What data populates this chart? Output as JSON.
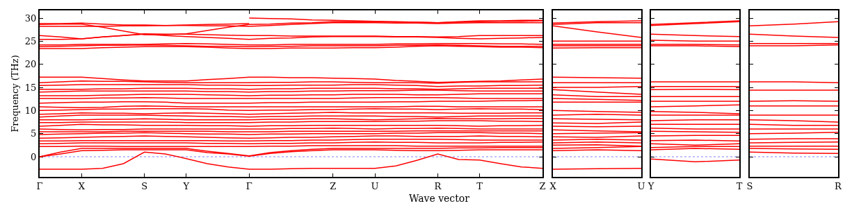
{
  "chart_data": [
    {
      "type": "line",
      "xlabel": "Wave vector",
      "ylabel": "Frequency (THz)",
      "categories": [
        "Γ",
        null,
        "X",
        null,
        null,
        "S",
        null,
        "Y",
        null,
        null,
        "Γ",
        null,
        null,
        null,
        "Z",
        null,
        "U",
        null,
        null,
        "R",
        null,
        "T",
        null,
        null,
        "Z"
      ],
      "ylim": [
        -4.35,
        31.65
      ],
      "yticks": [
        0,
        5,
        10,
        15,
        20,
        25,
        30
      ],
      "grid": false,
      "marker": "none",
      "line_style": "solid",
      "ref_lines": [
        {
          "axis": "y",
          "value": 0,
          "color": "#8080ff",
          "line_style": "dotted"
        }
      ],
      "series": [
        {
          "color": "#ff0000",
          "values": [
            -2.7,
            -2.7,
            -2.7,
            -2.5,
            -1.5,
            1.0,
            0.6,
            -0.4,
            -1.5,
            -2.2,
            -2.7,
            -2.7,
            -2.6,
            -2.5,
            -2.5,
            -2.5,
            -2.5,
            -2.0,
            -0.8,
            0.6,
            -0.6,
            -0.7,
            -1.5,
            -2.2,
            -2.5
          ]
        },
        {
          "color": "#ff0000",
          "values": [
            0,
            0.6,
            1.3,
            1.4,
            1.5,
            1.5,
            1.5,
            1.5,
            0.9,
            0.6,
            0.1,
            0.7,
            1.1,
            1.3,
            1.5,
            1.5,
            1.5,
            1.4,
            1.3,
            1.3,
            1.4,
            1.5,
            1.5,
            1.5,
            1.5
          ]
        },
        {
          "color": "#ff0000",
          "values": [
            0,
            1.0,
            1.8,
            1.8,
            1.8,
            1.8,
            1.8,
            1.8,
            1.2,
            0.7,
            0.2,
            0.9,
            1.3,
            1.6,
            1.8,
            1.8,
            1.8,
            1.8,
            1.8,
            1.8,
            1.9,
            1.9,
            2.0,
            2.0,
            2.0
          ]
        },
        {
          "color": "#ff0000",
          "values": [
            2.2,
            2.2,
            2.3,
            2.3,
            2.2,
            2.2,
            2.2,
            2.2,
            2.2,
            2.2,
            2.2,
            2.3,
            2.3,
            2.4,
            2.4,
            2.4,
            2.4,
            2.4,
            2.3,
            2.3,
            2.3,
            2.3,
            2.3,
            2.3,
            2.3
          ]
        },
        {
          "color": "#ff0000",
          "values": [
            2.8,
            2.9,
            3.0,
            3.0,
            3.0,
            3.0,
            3.0,
            3.0,
            2.9,
            2.9,
            2.8,
            2.9,
            2.9,
            3.0,
            3.0,
            3.1,
            3.2,
            3.1,
            3.1,
            3.0,
            3.0,
            3.0,
            3.1,
            3.1,
            3.2
          ]
        },
        {
          "color": "#ff0000",
          "values": [
            3.4,
            3.4,
            3.5,
            3.5,
            3.5,
            3.5,
            3.5,
            3.5,
            3.5,
            3.4,
            3.4,
            3.5,
            3.5,
            3.6,
            3.6,
            3.7,
            3.8,
            3.8,
            3.8,
            3.8,
            3.7,
            3.6,
            3.6,
            3.6,
            3.6
          ]
        },
        {
          "color": "#ff0000",
          "values": [
            4.0,
            4.1,
            4.2,
            4.3,
            4.4,
            4.5,
            4.4,
            4.3,
            4.2,
            4.1,
            4.0,
            4.1,
            4.2,
            4.2,
            4.3,
            4.4,
            4.5,
            4.5,
            4.4,
            4.4,
            4.4,
            4.5,
            4.4,
            4.4,
            4.3
          ]
        },
        {
          "color": "#ff0000",
          "values": [
            4.8,
            4.9,
            5.0,
            5.1,
            5.1,
            5.2,
            5.1,
            5.0,
            4.9,
            4.9,
            4.8,
            4.9,
            4.9,
            5.0,
            5.0,
            5.0,
            5.0,
            5.1,
            5.1,
            5.2,
            5.2,
            5.2,
            5.1,
            5.1,
            5.0
          ]
        },
        {
          "color": "#ff0000",
          "values": [
            5.4,
            5.4,
            5.4,
            5.4,
            5.5,
            5.5,
            5.5,
            5.5,
            5.5,
            5.4,
            5.4,
            5.4,
            5.5,
            5.5,
            5.5,
            5.5,
            5.5,
            5.5,
            5.6,
            5.6,
            5.6,
            5.6,
            5.6,
            5.6,
            5.6
          ]
        },
        {
          "color": "#ff0000",
          "values": [
            6.0,
            5.9,
            5.8,
            5.9,
            5.9,
            6.0,
            6.0,
            6.0,
            6.0,
            6.0,
            6.0,
            6.0,
            6.1,
            6.1,
            6.2,
            6.1,
            6.0,
            6.1,
            6.1,
            6.2,
            6.1,
            6.0,
            6.0,
            6.0,
            6.0
          ]
        },
        {
          "color": "#ff0000",
          "values": [
            6.6,
            6.8,
            7.0,
            6.9,
            6.9,
            6.8,
            6.8,
            6.8,
            6.7,
            6.7,
            6.6,
            6.7,
            6.7,
            6.8,
            6.8,
            6.8,
            6.8,
            6.8,
            6.8,
            6.8,
            6.7,
            6.6,
            6.7,
            6.7,
            6.8
          ]
        },
        {
          "color": "#ff0000",
          "values": [
            7.4,
            7.4,
            7.5,
            7.5,
            7.5,
            7.5,
            7.5,
            7.4,
            7.4,
            7.4,
            7.4,
            7.5,
            7.5,
            7.6,
            7.6,
            7.6,
            7.6,
            7.7,
            7.7,
            7.8,
            7.8,
            7.8,
            7.7,
            7.7,
            7.6
          ]
        },
        {
          "color": "#ff0000",
          "values": [
            8.0,
            8.0,
            8.0,
            8.1,
            8.1,
            8.2,
            8.1,
            8.0,
            8.0,
            8.0,
            8.0,
            8.1,
            8.1,
            8.2,
            8.2,
            8.1,
            8.0,
            8.1,
            8.2,
            8.3,
            8.2,
            8.2,
            8.2,
            8.3,
            8.3
          ]
        },
        {
          "color": "#ff0000",
          "values": [
            8.6,
            8.8,
            9.0,
            9.0,
            9.0,
            9.0,
            8.9,
            8.8,
            8.7,
            8.7,
            8.6,
            8.7,
            8.7,
            8.8,
            8.8,
            8.8,
            8.8,
            8.7,
            8.7,
            8.6,
            8.7,
            8.8,
            8.8,
            8.8,
            8.8
          ]
        },
        {
          "color": "#ff0000",
          "values": [
            9.2,
            9.3,
            9.5,
            9.4,
            9.4,
            9.3,
            9.4,
            9.5,
            9.4,
            9.3,
            9.2,
            9.3,
            9.4,
            9.5,
            9.6,
            9.5,
            9.5,
            9.5,
            9.5,
            9.5,
            9.4,
            9.4,
            9.4,
            9.5,
            9.5
          ]
        },
        {
          "color": "#ff0000",
          "values": [
            10.0,
            10.1,
            10.2,
            10.3,
            10.3,
            10.4,
            10.4,
            10.4,
            10.3,
            10.1,
            10.0,
            10.1,
            10.1,
            10.2,
            10.2,
            10.3,
            10.4,
            10.3,
            10.3,
            10.2,
            10.3,
            10.4,
            10.3,
            10.3,
            10.2
          ]
        },
        {
          "color": "#ff0000",
          "values": [
            10.8,
            10.7,
            10.6,
            10.7,
            10.9,
            11.0,
            10.9,
            10.8,
            10.8,
            10.8,
            10.8,
            10.8,
            10.8,
            10.8,
            10.8,
            10.8,
            10.8,
            10.8,
            10.9,
            10.9,
            10.8,
            10.8,
            10.8,
            10.8,
            10.8
          ]
        },
        {
          "color": "#ff0000",
          "values": [
            11.6,
            11.7,
            11.8,
            11.8,
            11.9,
            11.9,
            11.8,
            11.6,
            11.6,
            11.6,
            11.6,
            11.7,
            11.7,
            11.8,
            11.8,
            11.8,
            11.8,
            11.9,
            11.9,
            12.0,
            12.0,
            12.0,
            12.1,
            12.1,
            12.2
          ]
        },
        {
          "color": "#ff0000",
          "values": [
            12.6,
            12.6,
            12.6,
            12.7,
            12.7,
            12.8,
            12.7,
            12.6,
            12.6,
            12.6,
            12.6,
            12.6,
            12.6,
            12.6,
            12.6,
            12.7,
            12.8,
            12.8,
            12.8,
            12.8,
            12.7,
            12.6,
            12.6,
            12.6,
            12.6
          ]
        },
        {
          "color": "#ff0000",
          "values": [
            13.2,
            13.2,
            13.2,
            13.3,
            13.4,
            13.5,
            13.5,
            13.5,
            13.4,
            13.3,
            13.2,
            13.3,
            13.3,
            13.4,
            13.4,
            13.5,
            13.5,
            13.5,
            13.4,
            13.4,
            13.5,
            13.6,
            13.6,
            13.6,
            13.6
          ]
        },
        {
          "color": "#ff0000",
          "values": [
            14.0,
            14.1,
            14.2,
            14.2,
            14.2,
            14.2,
            14.2,
            14.2,
            14.1,
            14.1,
            14.0,
            14.1,
            14.1,
            14.2,
            14.2,
            14.3,
            14.3,
            14.3,
            14.4,
            14.4,
            14.3,
            14.2,
            14.2,
            14.2,
            14.2
          ]
        },
        {
          "color": "#ff0000",
          "values": [
            14.6,
            14.6,
            14.6,
            14.7,
            14.7,
            14.8,
            14.8,
            14.8,
            14.7,
            14.7,
            14.6,
            14.7,
            14.7,
            14.8,
            14.8,
            14.8,
            14.8,
            14.7,
            14.7,
            14.6,
            14.7,
            14.8,
            14.8,
            14.8,
            14.8
          ]
        },
        {
          "color": "#ff0000",
          "values": [
            15.4,
            15.5,
            15.6,
            15.6,
            15.6,
            15.6,
            15.6,
            15.6,
            15.5,
            15.5,
            15.4,
            15.4,
            15.5,
            15.5,
            15.5,
            15.6,
            15.6,
            15.5,
            15.4,
            15.2,
            15.3,
            15.3,
            15.4,
            15.4,
            15.5
          ]
        },
        {
          "color": "#ff0000",
          "values": [
            16.0,
            16.2,
            16.4,
            16.3,
            16.3,
            16.2,
            16.1,
            16.0,
            16.0,
            16.0,
            16.0,
            16.1,
            16.1,
            16.2,
            16.2,
            16.1,
            16.0,
            16.0,
            16.0,
            15.9,
            16.1,
            16.2,
            16.2,
            16.2,
            16.2
          ]
        },
        {
          "color": "#ff0000",
          "values": [
            17.2,
            17.2,
            17.2,
            16.9,
            16.6,
            16.4,
            16.4,
            16.4,
            16.7,
            16.9,
            17.2,
            17.2,
            17.1,
            17.1,
            17.0,
            16.9,
            16.8,
            16.5,
            16.3,
            16.1,
            16.2,
            16.3,
            16.4,
            16.6,
            16.8
          ]
        },
        {
          "color": "#ff0000",
          "values": [
            23.4,
            23.4,
            23.4,
            23.6,
            23.7,
            23.8,
            23.8,
            23.8,
            23.7,
            23.5,
            23.4,
            23.4,
            23.5,
            23.5,
            23.5,
            23.6,
            23.6,
            23.7,
            23.9,
            24.0,
            23.9,
            23.8,
            23.7,
            23.7,
            23.6
          ]
        },
        {
          "color": "#ff0000",
          "values": [
            23.8,
            23.9,
            24.0,
            24.1,
            24.1,
            24.2,
            24.1,
            24.0,
            23.9,
            23.9,
            23.8,
            23.9,
            23.9,
            24.0,
            24.0,
            24.0,
            24.0,
            24.1,
            24.1,
            24.2,
            24.1,
            24.0,
            23.9,
            23.9,
            23.9
          ]
        },
        {
          "color": "#ff0000",
          "values": [
            24.2,
            24.2,
            24.3,
            24.3,
            24.3,
            24.3,
            24.4,
            24.5,
            24.4,
            24.3,
            24.2,
            24.2,
            24.3,
            24.3,
            24.3,
            24.3,
            24.3,
            24.4,
            24.4,
            24.5,
            24.5,
            24.5,
            24.4,
            24.4,
            24.3
          ]
        },
        {
          "color": "#ff0000",
          "values": [
            25.4,
            25.4,
            25.5,
            25.9,
            26.2,
            26.5,
            26.2,
            26.0,
            25.8,
            25.6,
            25.4,
            25.6,
            25.7,
            25.9,
            26.0,
            26.0,
            26.0,
            25.9,
            25.9,
            25.8,
            25.6,
            25.5,
            25.6,
            25.7,
            25.8
          ]
        },
        {
          "color": "#ff0000",
          "values": [
            26.2,
            25.9,
            25.5,
            25.9,
            26.2,
            26.6,
            26.5,
            26.5,
            26.4,
            26.3,
            26.2,
            26.2,
            26.1,
            26.1,
            26.1,
            26.1,
            26.1,
            26.0,
            26.0,
            25.9,
            26.0,
            26.2,
            26.2,
            26.2,
            26.2
          ]
        },
        {
          "color": "#ff0000",
          "values": [
            28.2,
            28.2,
            28.2,
            28.2,
            28.3,
            28.3,
            28.4,
            28.4,
            28.3,
            28.3,
            28.2,
            28.4,
            28.6,
            28.8,
            29.0,
            29.0,
            29.0,
            28.9,
            28.9,
            28.8,
            28.9,
            29.0,
            29.0,
            29.0,
            29.0
          ]
        },
        {
          "color": "#ff0000",
          "values": [
            28.6,
            28.7,
            28.7,
            28.0,
            27.2,
            26.4,
            26.4,
            26.6,
            27.3,
            28.0,
            28.6,
            28.7,
            28.9,
            29.0,
            29.2,
            29.2,
            29.2,
            29.1,
            29.1,
            29.0,
            29.1,
            29.2,
            29.3,
            29.3,
            29.4
          ]
        },
        {
          "color": "#ff0000",
          "values": [
            28.8,
            28.8,
            28.9,
            28.7,
            28.5,
            28.5,
            28.4,
            28.5,
            28.6,
            28.7,
            28.8,
            null,
            null,
            null,
            null,
            null,
            null,
            null,
            null,
            null,
            null,
            null,
            null,
            null,
            null
          ]
        },
        {
          "color": "#ff0000",
          "values": [
            null,
            null,
            null,
            null,
            null,
            null,
            null,
            null,
            null,
            null,
            30.0,
            29.9,
            29.8,
            29.6,
            29.5,
            29.4,
            29.3,
            29.2,
            29.1,
            29.0,
            29.2,
            29.4,
            29.4,
            29.5,
            29.5
          ]
        }
      ]
    },
    {
      "type": "line",
      "categories": [
        "X",
        null,
        "U"
      ],
      "ylim": [
        -4.35,
        31.65
      ],
      "yticks": [
        0,
        5,
        10,
        15,
        20,
        25,
        30
      ],
      "tick_labels": "x",
      "grid": false,
      "marker": "none",
      "line_style": "solid",
      "ref_lines": [
        {
          "axis": "y",
          "value": 0,
          "color": "#8080ff",
          "line_style": "dotted"
        }
      ],
      "series": [
        {
          "color": "#ff0000",
          "values": [
            -2.7,
            -2.6,
            -2.5
          ]
        },
        {
          "color": "#ff0000",
          "values": [
            1.3,
            1.5,
            1.3
          ]
        },
        {
          "color": "#ff0000",
          "values": [
            1.8,
            2.0,
            2.2
          ]
        },
        {
          "color": "#ff0000",
          "values": [
            2.5,
            2.6,
            2.3
          ]
        },
        {
          "color": "#ff0000",
          "values": [
            3.0,
            3.2,
            3.0
          ]
        },
        {
          "color": "#ff0000",
          "values": [
            3.6,
            3.8,
            3.6
          ]
        },
        {
          "color": "#ff0000",
          "values": [
            4.3,
            4.2,
            4.5
          ]
        },
        {
          "color": "#ff0000",
          "values": [
            5.0,
            5.1,
            5.2
          ]
        },
        {
          "color": "#ff0000",
          "values": [
            5.8,
            5.6,
            5.4
          ]
        },
        {
          "color": "#ff0000",
          "values": [
            6.6,
            6.5,
            6.6
          ]
        },
        {
          "color": "#ff0000",
          "values": [
            7.3,
            7.2,
            7.5
          ]
        },
        {
          "color": "#ff0000",
          "values": [
            8.2,
            8.1,
            8.0
          ]
        },
        {
          "color": "#ff0000",
          "values": [
            9.0,
            9.2,
            9.0
          ]
        },
        {
          "color": "#ff0000",
          "values": [
            10.0,
            9.8,
            9.6
          ]
        },
        {
          "color": "#ff0000",
          "values": [
            11.8,
            11.8,
            11.8
          ]
        },
        {
          "color": "#ff0000",
          "values": [
            12.6,
            12.4,
            12.2
          ]
        },
        {
          "color": "#ff0000",
          "values": [
            13.4,
            13.0,
            13.0
          ]
        },
        {
          "color": "#ff0000",
          "values": [
            14.5,
            14.0,
            13.5
          ]
        },
        {
          "color": "#ff0000",
          "values": [
            15.0,
            15.0,
            15.2
          ]
        },
        {
          "color": "#ff0000",
          "values": [
            16.0,
            16.0,
            16.0
          ]
        },
        {
          "color": "#ff0000",
          "values": [
            17.2,
            17.1,
            17.0
          ]
        },
        {
          "color": "#ff0000",
          "values": [
            23.5,
            23.6,
            23.6
          ]
        },
        {
          "color": "#ff0000",
          "values": [
            24.0,
            24.0,
            24.0
          ]
        },
        {
          "color": "#ff0000",
          "values": [
            24.3,
            24.3,
            24.3
          ]
        },
        {
          "color": "#ff0000",
          "values": [
            25.0,
            25.0,
            25.0
          ]
        },
        {
          "color": "#ff0000",
          "values": [
            28.3,
            27.0,
            25.8
          ]
        },
        {
          "color": "#ff0000",
          "values": [
            28.6,
            29.0,
            29.0
          ]
        },
        {
          "color": "#ff0000",
          "values": [
            28.9,
            29.2,
            29.4
          ]
        }
      ]
    },
    {
      "type": "line",
      "categories": [
        "Y",
        null,
        "T"
      ],
      "ylim": [
        -4.35,
        31.65
      ],
      "yticks": [
        0,
        5,
        10,
        15,
        20,
        25,
        30
      ],
      "tick_labels": "x",
      "grid": false,
      "marker": "none",
      "line_style": "solid",
      "ref_lines": [
        {
          "axis": "y",
          "value": 0,
          "color": "#8080ff",
          "line_style": "dotted"
        }
      ],
      "series": [
        {
          "color": "#ff0000",
          "values": [
            -0.5,
            -1.1,
            -0.7
          ]
        },
        {
          "color": "#ff0000",
          "values": [
            1.5,
            1.8,
            1.6
          ]
        },
        {
          "color": "#ff0000",
          "values": [
            2.0,
            2.2,
            2.2
          ]
        },
        {
          "color": "#ff0000",
          "values": [
            2.8,
            2.5,
            2.8
          ]
        },
        {
          "color": "#ff0000",
          "values": [
            3.5,
            3.6,
            3.4
          ]
        },
        {
          "color": "#ff0000",
          "values": [
            4.5,
            4.6,
            4.6
          ]
        },
        {
          "color": "#ff0000",
          "values": [
            5.5,
            5.4,
            5.3
          ]
        },
        {
          "color": "#ff0000",
          "values": [
            6.2,
            6.0,
            6.0
          ]
        },
        {
          "color": "#ff0000",
          "values": [
            7.0,
            7.0,
            7.0
          ]
        },
        {
          "color": "#ff0000",
          "values": [
            7.8,
            8.0,
            8.0
          ]
        },
        {
          "color": "#ff0000",
          "values": [
            9.0,
            9.0,
            9.0
          ]
        },
        {
          "color": "#ff0000",
          "values": [
            9.8,
            9.6,
            9.3
          ]
        },
        {
          "color": "#ff0000",
          "values": [
            10.8,
            11.0,
            11.2
          ]
        },
        {
          "color": "#ff0000",
          "values": [
            12.0,
            12.0,
            12.0
          ]
        },
        {
          "color": "#ff0000",
          "values": [
            13.0,
            13.0,
            13.0
          ]
        },
        {
          "color": "#ff0000",
          "values": [
            14.5,
            14.6,
            14.5
          ]
        },
        {
          "color": "#ff0000",
          "values": [
            15.2,
            15.2,
            15.2
          ]
        },
        {
          "color": "#ff0000",
          "values": [
            16.2,
            16.2,
            16.2
          ]
        },
        {
          "color": "#ff0000",
          "values": [
            24.0,
            24.0,
            23.8
          ]
        },
        {
          "color": "#ff0000",
          "values": [
            24.3,
            24.3,
            24.2
          ]
        },
        {
          "color": "#ff0000",
          "values": [
            25.2,
            25.0,
            25.0
          ]
        },
        {
          "color": "#ff0000",
          "values": [
            26.5,
            26.2,
            26.0
          ]
        },
        {
          "color": "#ff0000",
          "values": [
            28.4,
            28.8,
            29.2
          ]
        },
        {
          "color": "#ff0000",
          "values": [
            28.6,
            29.0,
            29.4
          ]
        }
      ]
    },
    {
      "type": "line",
      "categories": [
        "S",
        null,
        "R"
      ],
      "ylim": [
        -4.35,
        31.65
      ],
      "yticks": [
        0,
        5,
        10,
        15,
        20,
        25,
        30
      ],
      "tick_labels": "x",
      "grid": false,
      "marker": "none",
      "line_style": "solid",
      "ref_lines": [
        {
          "axis": "y",
          "value": 0,
          "color": "#8080ff",
          "line_style": "dotted"
        }
      ],
      "series": [
        {
          "color": "#ff0000",
          "values": [
            1.0,
            0.8,
            0.7
          ]
        },
        {
          "color": "#ff0000",
          "values": [
            1.8,
            1.7,
            1.6
          ]
        },
        {
          "color": "#ff0000",
          "values": [
            2.3,
            2.3,
            2.3
          ]
        },
        {
          "color": "#ff0000",
          "values": [
            3.0,
            3.1,
            3.2
          ]
        },
        {
          "color": "#ff0000",
          "values": [
            3.8,
            3.9,
            3.9
          ]
        },
        {
          "color": "#ff0000",
          "values": [
            5.0,
            5.1,
            5.3
          ]
        },
        {
          "color": "#ff0000",
          "values": [
            6.0,
            6.0,
            6.0
          ]
        },
        {
          "color": "#ff0000",
          "values": [
            7.0,
            6.8,
            6.8
          ]
        },
        {
          "color": "#ff0000",
          "values": [
            8.0,
            7.8,
            7.5
          ]
        },
        {
          "color": "#ff0000",
          "values": [
            9.0,
            9.0,
            9.0
          ]
        },
        {
          "color": "#ff0000",
          "values": [
            11.0,
            11.0,
            11.0
          ]
        },
        {
          "color": "#ff0000",
          "values": [
            12.0,
            12.1,
            12.0
          ]
        },
        {
          "color": "#ff0000",
          "values": [
            14.4,
            14.4,
            14.4
          ]
        },
        {
          "color": "#ff0000",
          "values": [
            16.2,
            16.2,
            16.0
          ]
        },
        {
          "color": "#ff0000",
          "values": [
            24.0,
            24.0,
            24.2
          ]
        },
        {
          "color": "#ff0000",
          "values": [
            24.5,
            24.5,
            24.5
          ]
        },
        {
          "color": "#ff0000",
          "values": [
            26.5,
            26.1,
            25.8
          ]
        },
        {
          "color": "#ff0000",
          "values": [
            28.3,
            28.7,
            29.2
          ]
        }
      ]
    }
  ]
}
